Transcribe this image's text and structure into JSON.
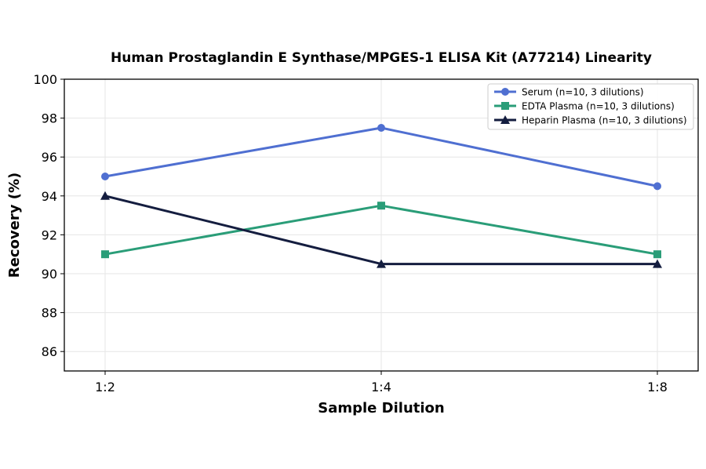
{
  "chart_data": {
    "type": "line",
    "title": "Human Prostaglandin E Synthase/MPGES-1 ELISA Kit (A77214) Linearity",
    "xlabel": "Sample Dilution",
    "ylabel": "Recovery (%)",
    "categories": [
      "1:2",
      "1:4",
      "1:8"
    ],
    "ylim": [
      85,
      100
    ],
    "yticks": [
      86,
      88,
      90,
      92,
      94,
      96,
      98,
      100
    ],
    "grid": true,
    "legend_position": "top-right",
    "series": [
      {
        "name": "Serum (n=10, 3 dilutions)",
        "values": [
          95.0,
          97.5,
          94.5
        ],
        "color": "#4f6fd1",
        "marker": "circle"
      },
      {
        "name": "EDTA Plasma (n=10, 3 dilutions)",
        "values": [
          91.0,
          93.5,
          91.0
        ],
        "color": "#2a9d78",
        "marker": "square"
      },
      {
        "name": "Heparin Plasma (n=10, 3 dilutions)",
        "values": [
          94.0,
          90.5,
          90.5
        ],
        "color": "#141d3f",
        "marker": "triangle"
      }
    ]
  }
}
